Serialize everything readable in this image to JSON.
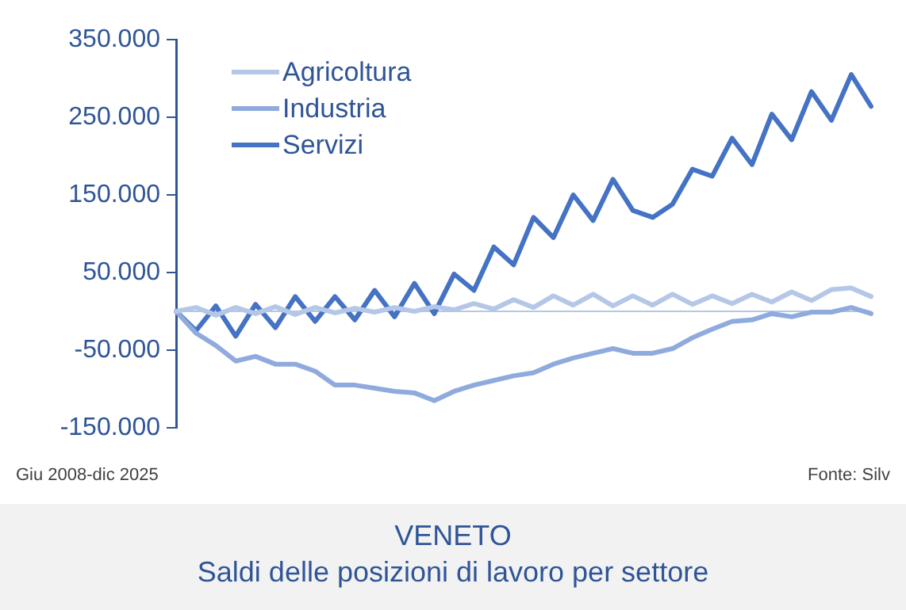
{
  "chart_data": {
    "type": "line",
    "title": "VENETO",
    "subtitle": "Saldi delle posizioni di lavoro per settore",
    "annotations": [
      "Giu 2008-dic 2025",
      "Fonte: Silv"
    ],
    "categories": [
      null,
      null,
      null,
      null,
      null,
      null,
      null,
      null,
      null,
      null,
      null,
      null,
      null,
      null,
      null,
      null,
      null,
      null,
      null,
      null,
      null,
      null,
      null,
      null,
      null,
      null,
      null,
      null,
      null,
      null,
      null,
      null,
      null,
      null,
      null,
      null
    ],
    "series": [
      {
        "name": "Agricoltura",
        "color": "#b4c7e7",
        "values": [
          0,
          5000,
          -5000,
          5000,
          -3000,
          6000,
          -4000,
          5000,
          -2000,
          4000,
          -1000,
          5000,
          0,
          6000,
          2000,
          10000,
          3000,
          15000,
          5000,
          20000,
          8000,
          22000,
          7000,
          20000,
          8000,
          22000,
          9000,
          20000,
          10000,
          22000,
          12000,
          25000,
          14000,
          28000,
          30000,
          19000
        ]
      },
      {
        "name": "Industria",
        "color": "#8faadc",
        "values": [
          0,
          -28000,
          -44000,
          -64000,
          -58000,
          -68000,
          -68000,
          -77000,
          -95000,
          -95000,
          -99000,
          -103000,
          -105000,
          -115000,
          -103000,
          -95000,
          -89000,
          -83000,
          -79000,
          -68000,
          -60000,
          -54000,
          -48000,
          -54000,
          -54000,
          -48000,
          -34000,
          -23000,
          -13000,
          -11000,
          -3000,
          -7000,
          -1000,
          -1000,
          5000,
          -3000
        ]
      },
      {
        "name": "Servizi",
        "color": "#4472c4",
        "values": [
          0,
          -25000,
          7000,
          -32000,
          9000,
          -21000,
          19000,
          -13000,
          19000,
          -11000,
          27000,
          -7000,
          36000,
          -3000,
          48000,
          27000,
          83000,
          60000,
          121000,
          95000,
          150000,
          117000,
          170000,
          130000,
          121000,
          138000,
          183000,
          174000,
          223000,
          189000,
          254000,
          221000,
          283000,
          246000,
          305000,
          264000
        ]
      }
    ],
    "ylim": [
      -150000,
      350000
    ],
    "yticks": [
      {
        "value": -150000,
        "label": "-150.000"
      },
      {
        "value": -50000,
        "label": "-50.000"
      },
      {
        "value": 50000,
        "label": "50.000"
      },
      {
        "value": 150000,
        "label": "150.000"
      },
      {
        "value": 250000,
        "label": "250.000"
      },
      {
        "value": 350000,
        "label": "350.000"
      }
    ],
    "ref_lines": [
      {
        "axis": "y",
        "value": 0,
        "color": "#b4c7e7"
      }
    ],
    "tick_labels": "y",
    "grid": false,
    "legend": "top left",
    "marker": "none",
    "line_style": "solid"
  }
}
